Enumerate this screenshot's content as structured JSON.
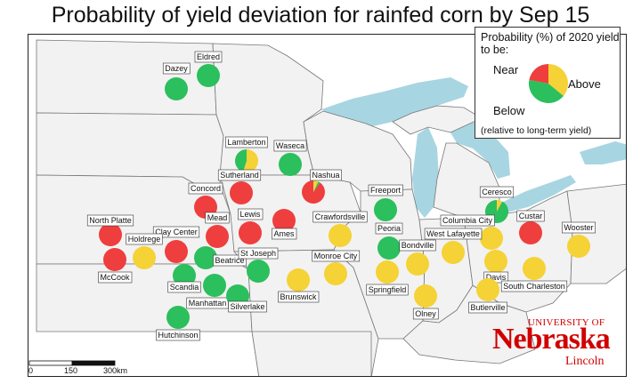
{
  "title": "Probability of yield deviation for rainfed corn by Sep 15",
  "colors": {
    "below": "#ef3e3e",
    "near": "#f5d235",
    "above": "#2bbf5d",
    "lake": "#a8d5e2",
    "state_fill": "#f2f2f2",
    "border": "#777777"
  },
  "legend": {
    "title": "Probability (%) of 2020 yield to be:",
    "near": "Near",
    "above": "Above",
    "below": "Below",
    "note": "(relative to long-term yield)",
    "example_probabilities": {
      "below": 22,
      "near": 36,
      "above": 42
    }
  },
  "scale_bar": {
    "labels": [
      "0",
      "150",
      "300km"
    ]
  },
  "logo": {
    "top": "UNIVERSITY OF",
    "main": "Nebraska",
    "bottom": "Lincoln"
  },
  "sites": [
    {
      "name": "Eldred",
      "probabilities": {
        "below": 0,
        "near": 0,
        "above": 100
      }
    },
    {
      "name": "Dazey",
      "probabilities": {
        "below": 0,
        "near": 0,
        "above": 100
      }
    },
    {
      "name": "Lamberton",
      "probabilities": {
        "below": 0,
        "near": 55,
        "above": 45
      }
    },
    {
      "name": "Waseca",
      "probabilities": {
        "below": 0,
        "near": 0,
        "above": 100
      }
    },
    {
      "name": "Sutherland",
      "probabilities": {
        "below": 100,
        "near": 0,
        "above": 0
      }
    },
    {
      "name": "Nashua",
      "probabilities": {
        "below": 90,
        "near": 7,
        "above": 3
      }
    },
    {
      "name": "Concord",
      "probabilities": {
        "below": 100,
        "near": 0,
        "above": 0
      }
    },
    {
      "name": "Freeport",
      "probabilities": {
        "below": 0,
        "near": 0,
        "above": 100
      }
    },
    {
      "name": "Ceresco",
      "probabilities": {
        "below": 0,
        "near": 8,
        "above": 92
      }
    },
    {
      "name": "Lewis",
      "probabilities": {
        "below": 100,
        "near": 0,
        "above": 0
      }
    },
    {
      "name": "Ames",
      "probabilities": {
        "below": 100,
        "near": 0,
        "above": 0
      }
    },
    {
      "name": "Mead",
      "probabilities": {
        "below": 100,
        "near": 0,
        "above": 0
      }
    },
    {
      "name": "North Platte",
      "probabilities": {
        "below": 100,
        "near": 0,
        "above": 0
      }
    },
    {
      "name": "Crawfordsville",
      "probabilities": {
        "below": 0,
        "near": 100,
        "above": 0
      }
    },
    {
      "name": "Custar",
      "probabilities": {
        "below": 100,
        "near": 0,
        "above": 0
      }
    },
    {
      "name": "Columbia City",
      "probabilities": {
        "below": 0,
        "near": 100,
        "above": 0
      }
    },
    {
      "name": "Wooster",
      "probabilities": {
        "below": 0,
        "near": 100,
        "above": 0
      }
    },
    {
      "name": "Clay Center",
      "probabilities": {
        "below": 100,
        "near": 0,
        "above": 0
      }
    },
    {
      "name": "Holdrege",
      "probabilities": {
        "below": 0,
        "near": 100,
        "above": 0
      }
    },
    {
      "name": "Peoria",
      "probabilities": {
        "below": 0,
        "near": 0,
        "above": 100
      }
    },
    {
      "name": "West Lafayette",
      "probabilities": {
        "below": 0,
        "near": 100,
        "above": 0
      }
    },
    {
      "name": "Bondville",
      "probabilities": {
        "below": 0,
        "near": 100,
        "above": 0
      }
    },
    {
      "name": "McCook",
      "probabilities": {
        "below": 100,
        "near": 0,
        "above": 0
      }
    },
    {
      "name": "Beatrice",
      "probabilities": {
        "below": 0,
        "near": 0,
        "above": 100
      }
    },
    {
      "name": "St Joseph",
      "probabilities": {
        "below": 0,
        "near": 0,
        "above": 100
      }
    },
    {
      "name": "Monroe City",
      "probabilities": {
        "below": 0,
        "near": 100,
        "above": 0
      }
    },
    {
      "name": "Scandia",
      "probabilities": {
        "below": 0,
        "near": 0,
        "above": 100
      }
    },
    {
      "name": "Davis",
      "probabilities": {
        "below": 0,
        "near": 100,
        "above": 0
      }
    },
    {
      "name": "South Charleston",
      "probabilities": {
        "below": 0,
        "near": 100,
        "above": 0
      }
    },
    {
      "name": "Springfield",
      "probabilities": {
        "below": 0,
        "near": 100,
        "above": 0
      }
    },
    {
      "name": "Brunswick",
      "probabilities": {
        "below": 0,
        "near": 100,
        "above": 0
      }
    },
    {
      "name": "Manhattan",
      "probabilities": {
        "below": 0,
        "near": 0,
        "above": 100
      }
    },
    {
      "name": "Silverlake",
      "probabilities": {
        "below": 0,
        "near": 0,
        "above": 100
      }
    },
    {
      "name": "Olney",
      "probabilities": {
        "below": 0,
        "near": 100,
        "above": 0
      }
    },
    {
      "name": "Butlerville",
      "probabilities": {
        "below": 0,
        "near": 100,
        "above": 0
      }
    },
    {
      "name": "Hutchinson",
      "probabilities": {
        "below": 0,
        "near": 0,
        "above": 100
      }
    }
  ]
}
